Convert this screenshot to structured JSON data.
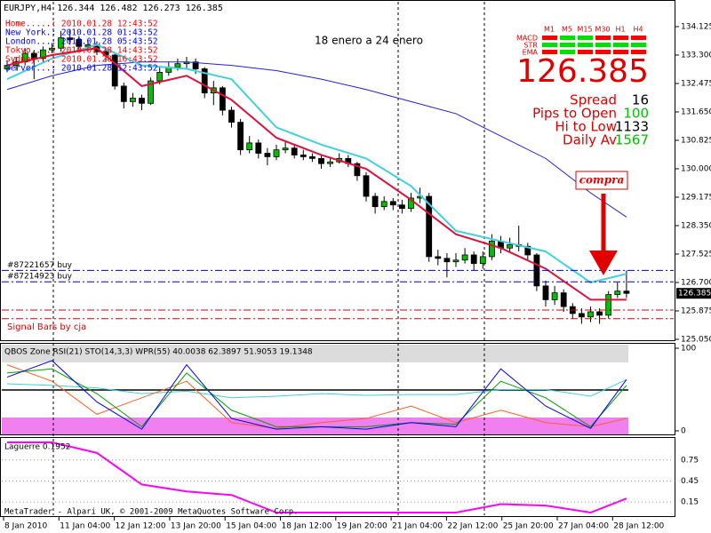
{
  "header": {
    "symbol_line": "EURJPY,H4  126.344 126.482 126.273 126.385",
    "clocks": [
      {
        "text": "Home.....: 2010.01.28 12:43:52",
        "color": "#ff0000"
      },
      {
        "text": "New York.: 2010.01.28 01:43:52",
        "color": "#0000ff"
      },
      {
        "text": "London...: 2010.01.28 05:43:52",
        "color": "#0000ff"
      },
      {
        "text": "Tokyo....: 2010.01.28 14:43:52",
        "color": "#ff0000"
      },
      {
        "text": "Sydney...: 2010.01.28 16:43:52",
        "color": "#ff0000"
      },
      {
        "text": "Server...: 2010.01.28 12:43:52",
        "color": "#0000ff"
      }
    ],
    "period_note": "18 enero a 24 enero",
    "signal_note": "Signal Bars by cja",
    "arrow_label": "compra",
    "copyright": "MetaTrader - Alpari UK, © 2001-2009 MetaQuotes Software Corp."
  },
  "price_chart": {
    "ylim": [
      125.05,
      134.125
    ],
    "yticks": [
      134.125,
      {
        "value": 133.3,
        "label": "133.300"
      },
      132.475,
      {
        "value": 131.65,
        "label": "131.650"
      },
      {
        "value": 130.825,
        "label": "130.825"
      },
      {
        "value": 130.0,
        "label": "130.000"
      },
      129.175,
      {
        "value": 128.35,
        "label": "128.350"
      },
      {
        "value": 127.525,
        "label": "127.525"
      },
      {
        "value": 126.7,
        "label": "126.700"
      },
      125.875,
      {
        "value": 125.05,
        "label": "125.050"
      }
    ],
    "open": [
      132.9,
      133.0,
      133.1,
      133.35,
      133.2,
      133.45,
      133.5,
      133.8,
      133.75,
      133.55,
      133.6,
      133.4,
      133.3,
      132.4,
      131.95,
      132.05,
      131.9,
      132.55,
      132.8,
      132.95,
      133.05,
      133.1,
      132.9,
      132.2,
      132.35,
      131.7,
      131.35,
      130.55,
      130.75,
      130.45,
      130.35,
      130.55,
      130.6,
      130.4,
      130.35,
      130.3,
      130.15,
      130.2,
      130.3,
      130.15,
      129.8,
      129.2,
      128.9,
      129.05,
      128.95,
      128.85,
      129.15,
      129.2,
      127.45,
      127.4,
      127.3,
      127.35,
      127.5,
      127.25,
      127.45,
      127.9,
      127.7,
      127.8,
      127.75,
      127.5,
      126.6,
      126.2,
      126.4,
      126.0,
      125.8,
      125.7,
      125.85,
      125.75,
      126.35,
      126.45
    ],
    "high": [
      133.15,
      133.25,
      133.5,
      133.45,
      133.55,
      133.65,
      134.0,
      134.05,
      133.85,
      133.75,
      133.7,
      133.5,
      133.35,
      132.5,
      132.2,
      132.15,
      132.65,
      132.95,
      133.1,
      133.2,
      133.25,
      133.2,
      132.95,
      132.55,
      132.4,
      131.8,
      131.45,
      130.95,
      130.85,
      130.6,
      130.7,
      130.8,
      130.7,
      130.55,
      130.45,
      130.4,
      130.35,
      130.45,
      130.4,
      130.2,
      129.9,
      129.3,
      129.2,
      129.15,
      129.1,
      129.3,
      129.45,
      129.3,
      127.65,
      127.55,
      127.55,
      127.7,
      127.6,
      127.6,
      128.1,
      128.05,
      128.0,
      128.35,
      127.85,
      127.55,
      126.75,
      126.6,
      126.5,
      126.1,
      125.95,
      126.0,
      125.95,
      126.45,
      126.7,
      127.05
    ],
    "low": [
      132.8,
      132.85,
      133.0,
      132.6,
      133.1,
      133.35,
      133.4,
      133.6,
      133.45,
      133.4,
      133.3,
      133.1,
      132.3,
      131.75,
      131.8,
      131.7,
      131.85,
      132.45,
      132.7,
      132.85,
      132.9,
      132.75,
      132.05,
      131.85,
      131.55,
      131.2,
      130.4,
      130.45,
      130.3,
      130.1,
      130.25,
      130.45,
      130.3,
      130.25,
      130.2,
      130.0,
      130.05,
      130.15,
      130.05,
      129.65,
      129.05,
      128.7,
      128.8,
      128.8,
      128.7,
      128.75,
      129.0,
      127.3,
      127.2,
      126.85,
      127.15,
      127.25,
      127.05,
      127.1,
      127.35,
      127.55,
      127.6,
      127.6,
      127.35,
      126.45,
      126.0,
      126.05,
      125.85,
      125.65,
      125.5,
      125.55,
      125.5,
      125.65,
      126.25,
      126.25
    ],
    "close": [
      133.0,
      133.1,
      133.35,
      133.2,
      133.45,
      133.5,
      133.8,
      133.75,
      133.55,
      133.6,
      133.4,
      133.3,
      132.4,
      131.95,
      132.05,
      131.9,
      132.55,
      132.8,
      132.95,
      133.05,
      133.1,
      132.9,
      132.2,
      132.35,
      131.7,
      131.35,
      130.55,
      130.75,
      130.45,
      130.35,
      130.55,
      130.6,
      130.4,
      130.35,
      130.3,
      130.15,
      130.2,
      130.3,
      130.15,
      129.8,
      129.2,
      128.9,
      129.05,
      128.95,
      128.85,
      129.15,
      129.2,
      127.45,
      127.4,
      127.3,
      127.35,
      127.5,
      127.25,
      127.45,
      127.9,
      127.7,
      127.8,
      127.75,
      127.5,
      126.6,
      126.2,
      126.4,
      126.0,
      125.8,
      125.7,
      125.85,
      125.75,
      126.35,
      126.45,
      126.385
    ],
    "up_color": "#00c000",
    "down_color": "#000000",
    "lines": [
      {
        "color": "#2020e0",
        "x": [
          0,
          5,
          10,
          15,
          20,
          25,
          30,
          35,
          40,
          45,
          50,
          55,
          60,
          65,
          69
        ],
        "values": [
          132.3,
          132.7,
          133.0,
          133.1,
          133.1,
          133.0,
          132.85,
          132.6,
          132.3,
          131.95,
          131.6,
          130.95,
          130.3,
          129.3,
          128.6
        ]
      },
      {
        "color": "#40d0e0",
        "x": [
          0,
          5,
          10,
          15,
          20,
          25,
          30,
          35,
          40,
          45,
          50,
          55,
          60,
          65,
          69
        ],
        "values": [
          132.6,
          133.2,
          133.6,
          133.0,
          132.9,
          132.6,
          131.2,
          130.7,
          130.3,
          129.5,
          128.2,
          127.9,
          127.6,
          126.7,
          126.95
        ]
      },
      {
        "color": "#e0103c",
        "x": [
          0,
          5,
          10,
          15,
          20,
          25,
          30,
          35,
          40,
          45,
          50,
          55,
          60,
          65,
          69
        ],
        "values": [
          133.0,
          133.3,
          133.5,
          132.4,
          132.7,
          132.0,
          130.9,
          130.4,
          130.0,
          129.1,
          128.1,
          127.7,
          127.1,
          126.2,
          126.2
        ]
      }
    ],
    "orders": [
      {
        "label": "#87221657 buy",
        "price": 127.05
      },
      {
        "label": "#87214923 buy",
        "price": 126.72
      }
    ],
    "order_color": "#0000c0",
    "signal_levels": [
      125.9,
      125.65
    ],
    "signal_color": "#e00000",
    "last_price": 126.385
  },
  "panel": {
    "timeframes": [
      "M1",
      "M5",
      "M15",
      "M30",
      "H1",
      "H4"
    ],
    "rows": [
      "MACD",
      "STR",
      "EMA"
    ],
    "cells": [
      [
        "#ff0000",
        "#00e000",
        "#00e000",
        "#ff0000",
        "#ff0000",
        "#ff0000"
      ],
      [
        "#00e000",
        "#00e000",
        "#00e000",
        "#00e000",
        "#00e000",
        "#00e000"
      ],
      [
        "#ff0000",
        "#00e000",
        "#ff0000",
        "#ff0000",
        "#ff0000",
        "#ff0000"
      ]
    ],
    "stats": [
      {
        "label": "Spread",
        "value": 16,
        "color": "#000000"
      },
      {
        "label": "Pips to Open",
        "value": 100,
        "color": "#00c000"
      },
      {
        "label": "Hi to Low",
        "value": 1133,
        "color": "#000000"
      },
      {
        "label": "Daily Av",
        "value": 1567,
        "color": "#00c000"
      }
    ]
  },
  "indicator": {
    "title": "QBOS Zone  RSI(21)  STO(14,3,3)  WPR(55) 40.0038 62.3897 51.9053 19.1348",
    "ylim": [
      0,
      100
    ],
    "yticks": [
      100,
      0
    ],
    "lines": [
      {
        "color": "#40d0e0",
        "x": [
          0,
          5,
          10,
          15,
          20,
          25,
          30,
          35,
          40,
          45,
          50,
          55,
          60,
          65,
          69
        ],
        "values": [
          57,
          55,
          52,
          45,
          48,
          40,
          42,
          45,
          43,
          44,
          44,
          50,
          50,
          42,
          62
        ]
      },
      {
        "color": "#ff6020",
        "x": [
          0,
          5,
          10,
          15,
          20,
          25,
          30,
          35,
          40,
          45,
          50,
          55,
          60,
          65,
          69
        ],
        "values": [
          80,
          60,
          20,
          40,
          60,
          10,
          3,
          10,
          15,
          30,
          10,
          25,
          10,
          5,
          15
        ]
      },
      {
        "color": "#00a000",
        "x": [
          0,
          5,
          10,
          15,
          20,
          25,
          30,
          35,
          40,
          45,
          50,
          55,
          60,
          65,
          69
        ],
        "values": [
          70,
          75,
          45,
          5,
          70,
          25,
          5,
          5,
          5,
          10,
          8,
          60,
          40,
          5,
          55
        ]
      },
      {
        "color": "#0000ff",
        "x": [
          0,
          5,
          10,
          15,
          20,
          25,
          30,
          35,
          40,
          45,
          50,
          55,
          60,
          65,
          69
        ],
        "values": [
          65,
          85,
          35,
          2,
          80,
          15,
          2,
          5,
          2,
          10,
          5,
          75,
          30,
          3,
          62
        ]
      }
    ]
  },
  "laguerre": {
    "title": "Laguerre 0.1952",
    "ylim": [
      0,
      1
    ],
    "yticks": [
      0.75,
      0.45,
      0.15
    ],
    "color": "#ff00ff",
    "x": [
      0,
      5,
      10,
      15,
      20,
      25,
      30,
      35,
      40,
      45,
      50,
      55,
      60,
      65,
      69
    ],
    "values": [
      1.0,
      1.0,
      0.85,
      0.4,
      0.3,
      0.25,
      0.0,
      0.0,
      0.0,
      0.0,
      0.0,
      0.12,
      0.1,
      0.0,
      0.2
    ]
  },
  "time_labels": [
    "8 Jan 2010",
    "11 Jan 04:00",
    "12 Jan 12:00",
    "13 Jan 20:00",
    "15 Jan 04:00",
    "18 Jan 12:00",
    "19 Jan 20:00",
    "21 Jan 04:00",
    "22 Jan 12:00",
    "25 Jan 20:00",
    "27 Jan 04:00",
    "28 Jan 12:00"
  ]
}
